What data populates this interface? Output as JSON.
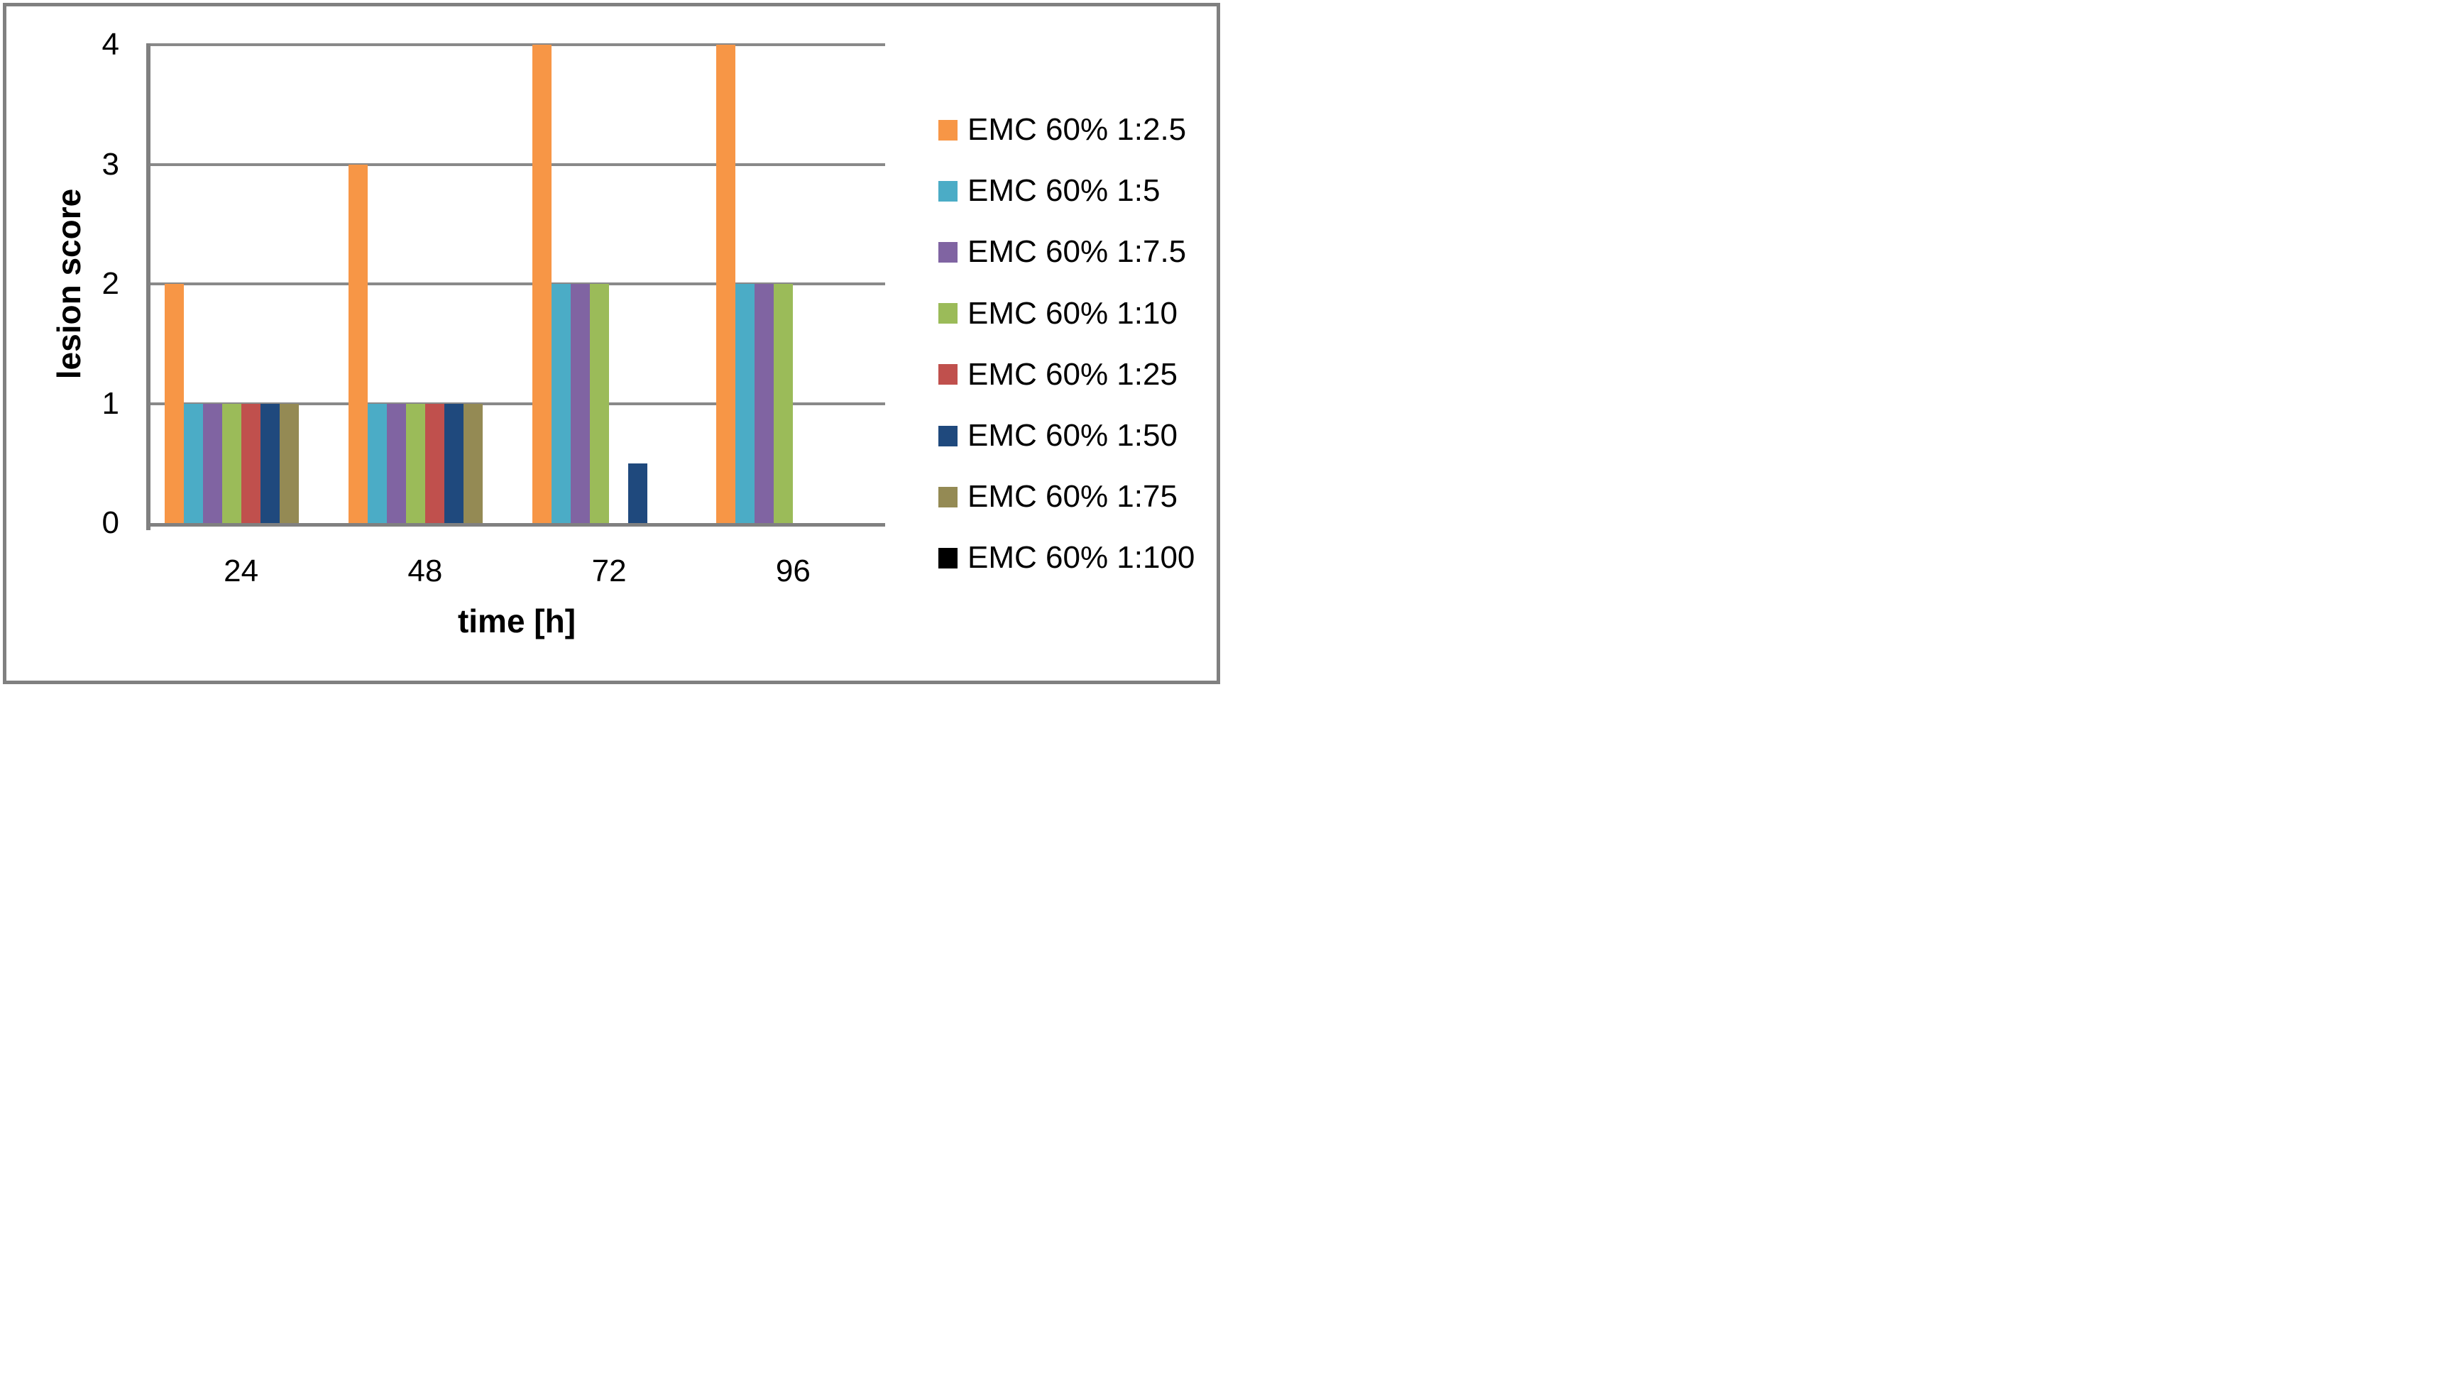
{
  "chart_data": {
    "type": "bar",
    "title": "",
    "xlabel": "time [h]",
    "ylabel": "lesion score",
    "categories": [
      "24",
      "48",
      "72",
      "96"
    ],
    "y_ticks": [
      0,
      1,
      2,
      3,
      4
    ],
    "y_tick_labels": [
      "0",
      "1",
      "2",
      "3",
      "4"
    ],
    "ylim": [
      0,
      4
    ],
    "grid": true,
    "legend_position": "right",
    "series": [
      {
        "name": "EMC 60% 1:2.5",
        "color": "#F79646",
        "values": [
          2,
          3,
          4,
          4
        ]
      },
      {
        "name": "EMC 60% 1:5",
        "color": "#4BACC6",
        "values": [
          1,
          1,
          2,
          2
        ]
      },
      {
        "name": "EMC 60% 1:7.5",
        "color": "#8064A2",
        "values": [
          1,
          1,
          2,
          2
        ]
      },
      {
        "name": "EMC 60% 1:10",
        "color": "#9BBB59",
        "values": [
          1,
          1,
          2,
          2
        ]
      },
      {
        "name": "EMC 60% 1:25",
        "color": "#C0504D",
        "values": [
          1,
          1,
          0,
          0
        ]
      },
      {
        "name": "EMC 60% 1:50",
        "color": "#1F497D",
        "values": [
          1,
          1,
          0.5,
          0
        ]
      },
      {
        "name": "EMC 60% 1:75",
        "color": "#948A54",
        "values": [
          1,
          1,
          0,
          0
        ]
      },
      {
        "name": "EMC 60% 1:100",
        "color": "#000000",
        "values": [
          0,
          0,
          0,
          0
        ]
      }
    ]
  },
  "colors": {
    "gridline": "#898989",
    "axis": "#808080",
    "frame": "#808080",
    "text": "#000000",
    "background": "#FFFFFF"
  }
}
